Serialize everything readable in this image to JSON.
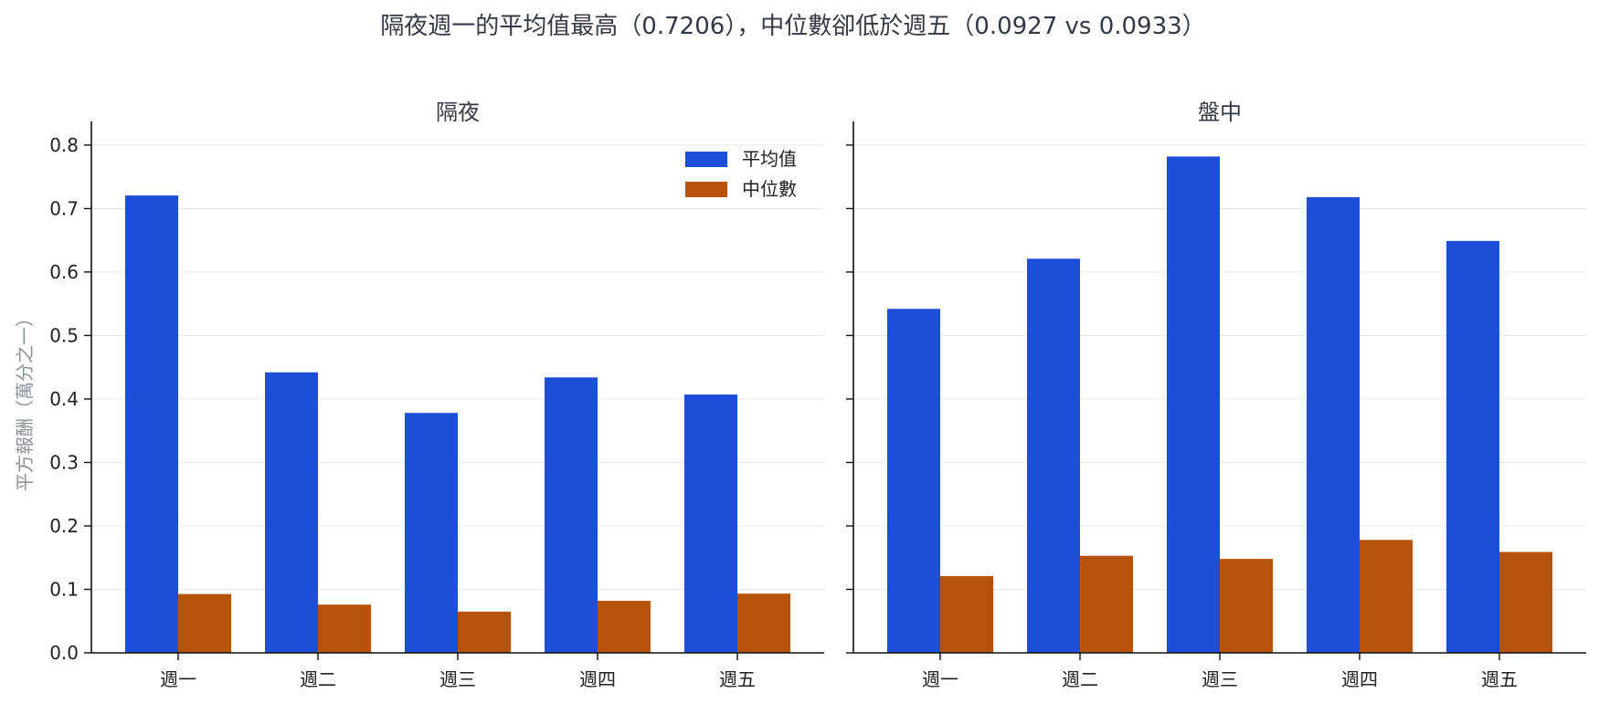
{
  "colors": {
    "mean": "#1d4ed8",
    "median": "#b45309"
  },
  "chart_data": {
    "type": "bar",
    "title": "隔夜週一的平均值最高（0.7206），中位數卻低於週五（0.0927 vs 0.0933）",
    "ylabel": "平方報酬（萬分之一）",
    "ylim": [
      0,
      0.82
    ],
    "yticks": [
      "0.0",
      "0.1",
      "0.2",
      "0.3",
      "0.4",
      "0.5",
      "0.6",
      "0.7",
      "0.8"
    ],
    "grid": "horizontal",
    "legend": {
      "placement": "top-right",
      "entries": [
        "平均值",
        "中位數"
      ]
    },
    "categories": [
      "週一",
      "週二",
      "週三",
      "週四",
      "週五"
    ],
    "panels": [
      {
        "title": "隔夜",
        "series": [
          {
            "name": "平均值",
            "values": [
              0.7206,
              0.442,
              0.378,
              0.434,
              0.407
            ]
          },
          {
            "name": "中位數",
            "values": [
              0.0927,
              0.076,
              0.065,
              0.082,
              0.0933
            ]
          }
        ]
      },
      {
        "title": "盤中",
        "series": [
          {
            "name": "平均值",
            "values": [
              0.542,
              0.621,
              0.782,
              0.718,
              0.649
            ]
          },
          {
            "name": "中位數",
            "values": [
              0.121,
              0.153,
              0.148,
              0.178,
              0.159
            ]
          }
        ]
      }
    ]
  }
}
